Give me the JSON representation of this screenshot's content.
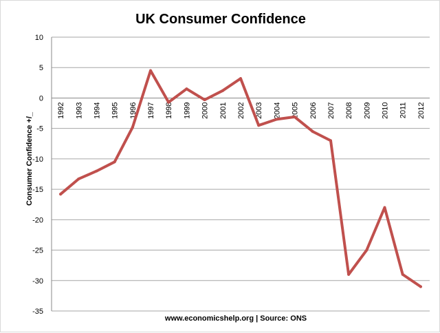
{
  "chart_data": {
    "type": "line",
    "title": "UK Consumer Confidence",
    "xlabel": "www.economicshelp.org | Source: ONS",
    "ylabel": "Consumer Confidence +/_",
    "ylim": [
      -35,
      10
    ],
    "y_ticks": [
      10,
      5,
      0,
      -5,
      -10,
      -15,
      -20,
      -25,
      -30,
      -35
    ],
    "grid": true,
    "legend": "none",
    "categories": [
      "1992",
      "1993",
      "1994",
      "1995",
      "1996",
      "1997",
      "1998",
      "1999",
      "2000",
      "2001",
      "2002",
      "2003",
      "2004",
      "2005",
      "2006",
      "2007",
      "2008",
      "2009",
      "2010",
      "2011",
      "2012"
    ],
    "series": [
      {
        "color": "#c0504d",
        "values": [
          -15.8,
          -13.3,
          -12,
          -10.5,
          -4.8,
          4.5,
          -0.7,
          1.5,
          -0.3,
          1.2,
          3.2,
          -4.5,
          -3.5,
          -3.1,
          -5.5,
          -7,
          -29,
          -25,
          -18,
          -29,
          -31
        ]
      }
    ]
  }
}
